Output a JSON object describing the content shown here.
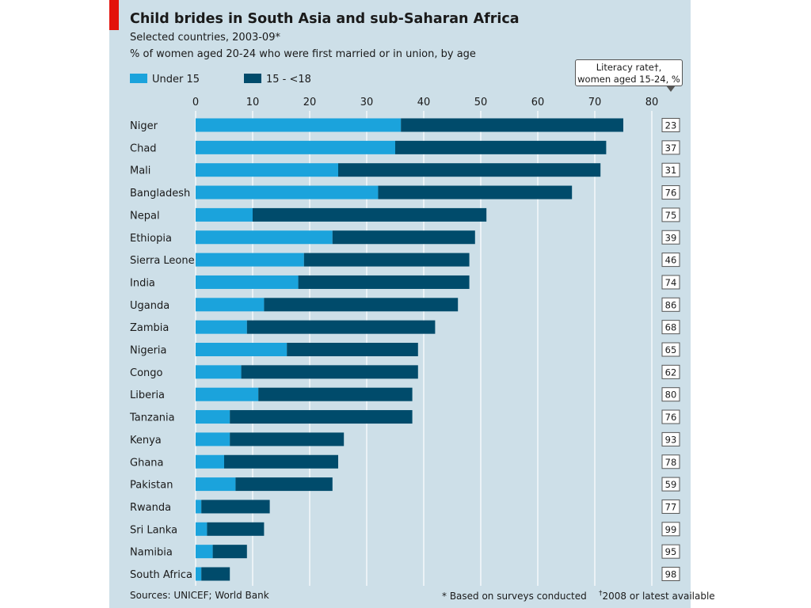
{
  "header": {
    "title": "Child brides in South Asia and sub-Saharan Africa",
    "subtitle": "Selected countries, 2003-09*",
    "subtitle2": "% of women aged 20-24 who were first married or in union, by age"
  },
  "callout": {
    "line1": "Literacy rate†,",
    "line2": "women aged 15-24, %"
  },
  "footer": {
    "source": "Sources: UNICEF; World Bank",
    "note1": "* Based on surveys conducted",
    "note2_mark": "†",
    "note2": "2008 or latest available"
  },
  "colors": {
    "under15": "#1ba3dc",
    "15to18": "#004b6b",
    "grid": "#ffffff",
    "panel": "#cddfe8"
  },
  "chart_data": {
    "type": "bar",
    "orientation": "horizontal",
    "stacked": true,
    "xlim": [
      0,
      80
    ],
    "xticks": [
      0,
      10,
      20,
      30,
      40,
      50,
      60,
      70,
      80
    ],
    "legend_position": "top-left",
    "grid": true,
    "categories": [
      "Niger",
      "Chad",
      "Mali",
      "Bangladesh",
      "Nepal",
      "Ethiopia",
      "Sierra Leone",
      "India",
      "Uganda",
      "Zambia",
      "Nigeria",
      "Congo",
      "Liberia",
      "Tanzania",
      "Kenya",
      "Ghana",
      "Pakistan",
      "Rwanda",
      "Sri Lanka",
      "Namibia",
      "South Africa"
    ],
    "series": [
      {
        "name": "Under 15",
        "values": [
          36,
          35,
          25,
          32,
          10,
          24,
          19,
          18,
          12,
          9,
          16,
          8,
          11,
          6,
          6,
          5,
          7,
          1,
          2,
          3,
          1
        ]
      },
      {
        "name": "15 - <18",
        "values": [
          39,
          37,
          46,
          34,
          41,
          25,
          29,
          30,
          34,
          33,
          23,
          31,
          27,
          32,
          20,
          20,
          17,
          12,
          10,
          6,
          5
        ]
      }
    ],
    "literacy_rate": [
      23,
      37,
      31,
      76,
      75,
      39,
      46,
      74,
      86,
      68,
      65,
      62,
      80,
      76,
      93,
      78,
      59,
      77,
      99,
      95,
      98
    ]
  }
}
